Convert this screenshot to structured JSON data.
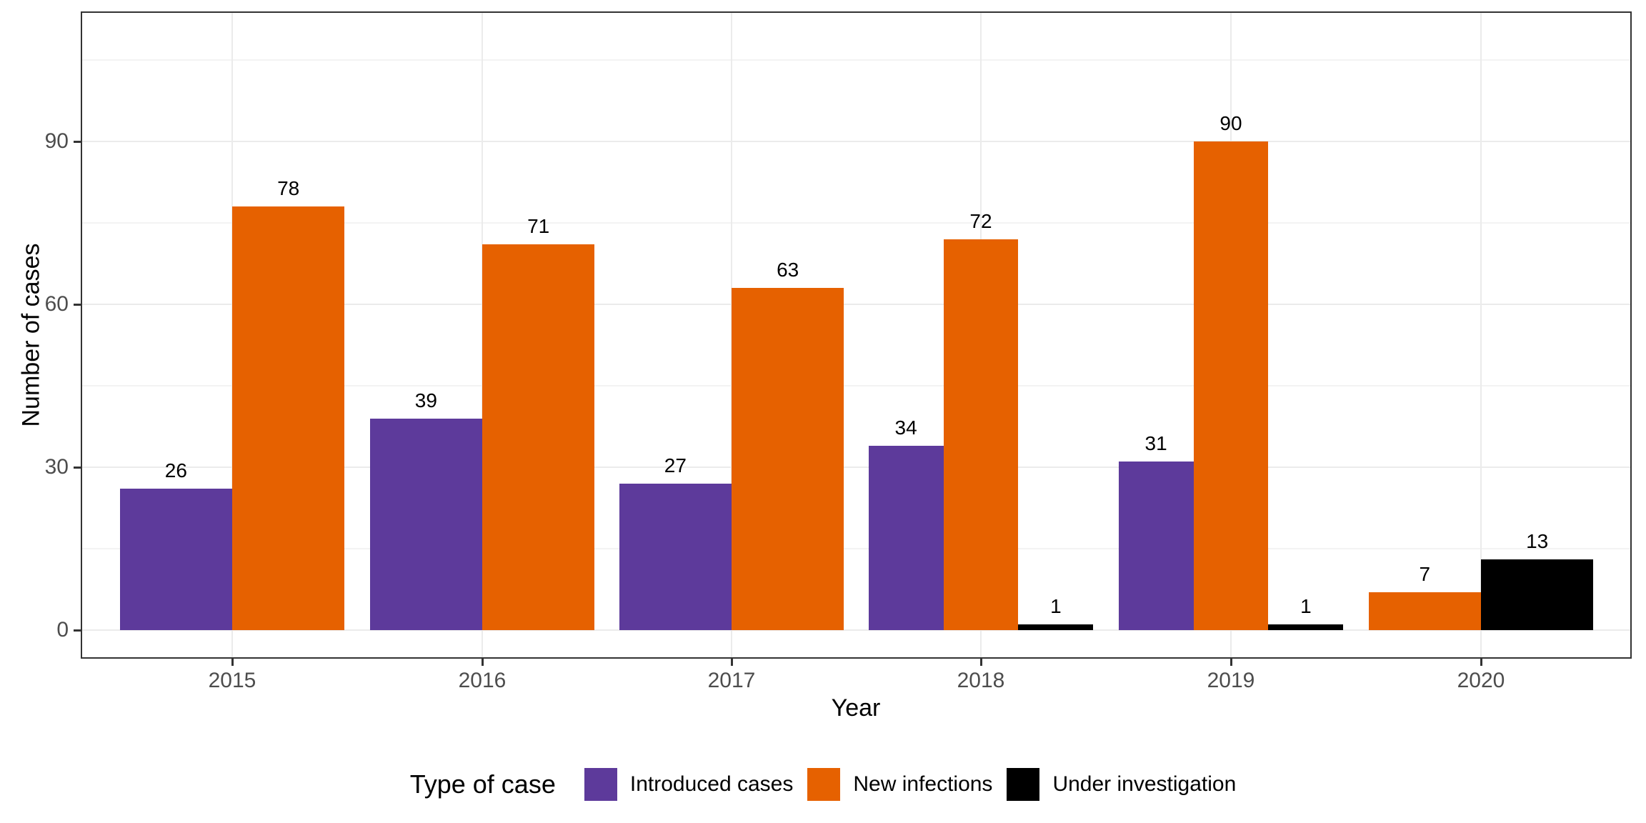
{
  "chart_data": {
    "type": "bar",
    "title": "",
    "xlabel": "Year",
    "ylabel": "Number of cases",
    "categories": [
      "2015",
      "2016",
      "2017",
      "2018",
      "2019",
      "2020"
    ],
    "series": [
      {
        "name": "Introduced cases",
        "color": "#5D3A9B",
        "values": [
          26,
          39,
          27,
          34,
          31,
          null
        ]
      },
      {
        "name": "New infections",
        "color": "#E66100",
        "values": [
          78,
          71,
          63,
          72,
          90,
          7
        ]
      },
      {
        "name": "Under investigation",
        "color": "#000000",
        "values": [
          null,
          null,
          null,
          1,
          1,
          13
        ]
      }
    ],
    "bar_value_labels": [
      [
        26,
        39,
        27,
        34,
        31,
        null
      ],
      [
        78,
        71,
        63,
        72,
        90,
        7
      ],
      [
        null,
        null,
        null,
        1,
        1,
        13
      ]
    ],
    "y_ticks": [
      0,
      30,
      60,
      90
    ],
    "y_minor_gridlines": [
      15,
      45,
      75,
      105
    ],
    "ylim": [
      0,
      114
    ],
    "grid": "on",
    "legend_position": "bottom",
    "legend_title": "Type of case"
  },
  "style": {
    "panel_border_color": "#333333",
    "grid_major_color": "#ebebeb",
    "grid_minor_color": "#f3f3f3",
    "tick_text_color": "#4d4d4d",
    "bar_label_color": "#000000",
    "background": "#ffffff"
  }
}
